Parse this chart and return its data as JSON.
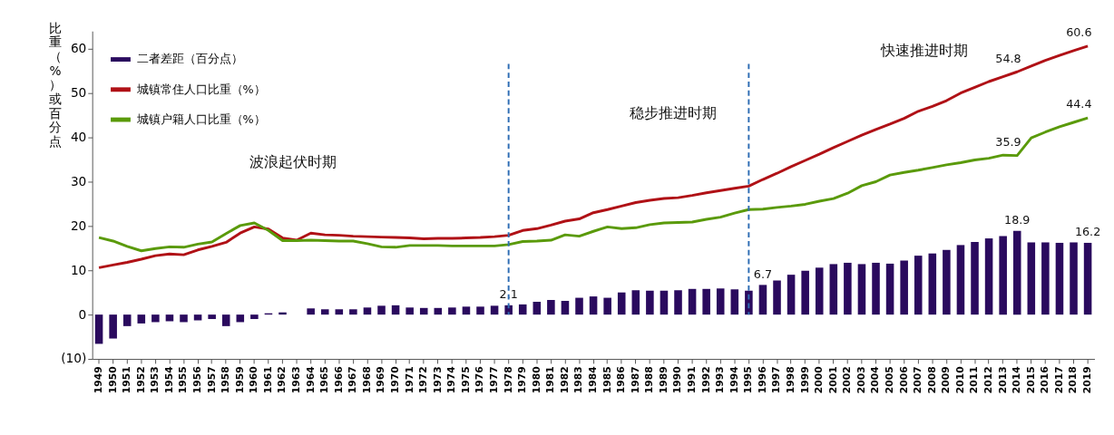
{
  "chart_data": {
    "type": "bar",
    "ylabel": "比重（%）或百分点",
    "categories": [
      "1949",
      "1950",
      "1951",
      "1952",
      "1953",
      "1954",
      "1955",
      "1956",
      "1957",
      "1958",
      "1959",
      "1960",
      "1961",
      "1962",
      "1963",
      "1964",
      "1965",
      "1966",
      "1967",
      "1968",
      "1969",
      "1970",
      "1971",
      "1972",
      "1973",
      "1974",
      "1975",
      "1976",
      "1977",
      "1978",
      "1979",
      "1980",
      "1981",
      "1982",
      "1983",
      "1984",
      "1985",
      "1986",
      "1987",
      "1988",
      "1989",
      "1990",
      "1991",
      "1992",
      "1993",
      "1994",
      "1995",
      "1996",
      "1997",
      "1998",
      "1999",
      "2000",
      "2001",
      "2002",
      "2003",
      "2004",
      "2005",
      "2006",
      "2007",
      "2008",
      "2009",
      "2010",
      "2011",
      "2012",
      "2013",
      "2014",
      "2015",
      "2016",
      "2017",
      "2018",
      "2019"
    ],
    "series": [
      {
        "name": "二者差距（百分点）",
        "color": "#2a0a5e",
        "values": [
          -6.6,
          -5.4,
          -2.6,
          -2.0,
          -1.7,
          -1.5,
          -1.7,
          -1.3,
          -1.0,
          -2.6,
          -1.7,
          -1.0,
          0.3,
          0.5,
          0,
          1.4,
          1.2,
          1.2,
          1.2,
          1.6,
          2.0,
          2.1,
          1.6,
          1.5,
          1.5,
          1.6,
          1.8,
          1.8,
          2.0,
          2.1,
          2.3,
          2.9,
          3.3,
          3.1,
          3.8,
          4.1,
          3.8,
          5.0,
          5.5,
          5.4,
          5.4,
          5.5,
          5.8,
          5.8,
          5.9,
          5.7,
          5.4,
          6.7,
          7.7,
          9.0,
          9.9,
          10.6,
          11.4,
          11.7,
          11.4,
          11.7,
          11.5,
          12.2,
          13.3,
          13.8,
          14.6,
          15.7,
          16.4,
          17.2,
          17.7,
          18.9,
          16.3,
          16.3,
          16.2,
          16.3,
          16.2
        ],
        "value_labels": [
          null,
          null,
          null,
          null,
          null,
          null,
          null,
          null,
          null,
          null,
          null,
          null,
          null,
          null,
          null,
          null,
          null,
          null,
          null,
          null,
          null,
          null,
          null,
          null,
          null,
          null,
          null,
          null,
          null,
          "2.1",
          null,
          null,
          null,
          null,
          null,
          null,
          null,
          null,
          null,
          null,
          null,
          null,
          null,
          null,
          null,
          null,
          null,
          "6.7",
          null,
          null,
          null,
          null,
          null,
          null,
          null,
          null,
          null,
          null,
          null,
          null,
          null,
          null,
          null,
          null,
          null,
          "18.9",
          null,
          null,
          null,
          null,
          "16.2"
        ]
      },
      {
        "name": "城镇常住人口比重（%）",
        "type": "line",
        "color": "#b01116",
        "values": [
          10.6,
          11.2,
          11.8,
          12.5,
          13.3,
          13.7,
          13.5,
          14.6,
          15.4,
          16.3,
          18.4,
          19.8,
          19.3,
          17.3,
          16.8,
          18.4,
          18.0,
          17.9,
          17.7,
          17.6,
          17.5,
          17.4,
          17.3,
          17.1,
          17.2,
          17.2,
          17.3,
          17.4,
          17.6,
          17.9,
          19.0,
          19.4,
          20.2,
          21.1,
          21.6,
          23.0,
          23.7,
          24.5,
          25.3,
          25.8,
          26.2,
          26.4,
          26.9,
          27.5,
          28.0,
          28.5,
          29.0,
          30.5,
          31.9,
          33.4,
          34.8,
          36.2,
          37.7,
          39.1,
          40.5,
          41.8,
          43.0,
          44.3,
          45.9,
          47.0,
          48.3,
          50.0,
          51.3,
          52.6,
          53.7,
          54.8,
          56.1,
          57.4,
          58.5,
          59.6,
          60.6
        ],
        "value_labels": [
          null,
          null,
          null,
          null,
          null,
          null,
          null,
          null,
          null,
          null,
          null,
          null,
          null,
          null,
          null,
          null,
          null,
          null,
          null,
          null,
          null,
          null,
          null,
          null,
          null,
          null,
          null,
          null,
          null,
          null,
          null,
          null,
          null,
          null,
          null,
          null,
          null,
          null,
          null,
          null,
          null,
          null,
          null,
          null,
          null,
          null,
          null,
          null,
          null,
          null,
          null,
          null,
          null,
          null,
          null,
          null,
          null,
          null,
          null,
          null,
          null,
          null,
          null,
          null,
          null,
          "54.8",
          null,
          null,
          null,
          null,
          "60.6"
        ]
      },
      {
        "name": "城镇户籍人口比重（%）",
        "type": "line",
        "color": "#5a9a0a",
        "values": [
          17.4,
          16.6,
          15.4,
          14.4,
          14.9,
          15.3,
          15.2,
          15.9,
          16.4,
          18.3,
          20.1,
          20.7,
          19.0,
          16.7,
          16.7,
          16.8,
          16.7,
          16.6,
          16.6,
          16.0,
          15.3,
          15.2,
          15.6,
          15.6,
          15.6,
          15.5,
          15.5,
          15.5,
          15.5,
          15.8,
          16.5,
          16.6,
          16.8,
          18.0,
          17.7,
          18.8,
          19.8,
          19.4,
          19.6,
          20.3,
          20.7,
          20.8,
          20.9,
          21.5,
          22.0,
          22.9,
          23.7,
          23.8,
          24.2,
          24.5,
          24.9,
          25.6,
          26.2,
          27.4,
          29.1,
          30.0,
          31.5,
          32.1,
          32.6,
          33.2,
          33.8,
          34.3,
          34.9,
          35.3,
          36.0,
          35.9,
          39.9,
          41.2,
          42.4,
          43.4,
          44.4
        ],
        "value_labels": [
          null,
          null,
          null,
          null,
          null,
          null,
          null,
          null,
          null,
          null,
          null,
          null,
          null,
          null,
          null,
          null,
          null,
          null,
          null,
          null,
          null,
          null,
          null,
          null,
          null,
          null,
          null,
          null,
          null,
          null,
          null,
          null,
          null,
          null,
          null,
          null,
          null,
          null,
          null,
          null,
          null,
          null,
          null,
          null,
          null,
          null,
          null,
          null,
          null,
          null,
          null,
          null,
          null,
          null,
          null,
          null,
          null,
          null,
          null,
          null,
          null,
          null,
          null,
          null,
          null,
          "35.9",
          null,
          null,
          null,
          null,
          "44.4"
        ]
      }
    ],
    "ylim": [
      -10,
      64
    ],
    "yticks": [
      {
        "value": -10,
        "label": "(10)"
      },
      0,
      10,
      20,
      30,
      40,
      50,
      60
    ],
    "ref_lines": [
      {
        "axis": "x",
        "value": "1978",
        "color": "#2e6db4",
        "line_style": "dashed"
      },
      {
        "axis": "x",
        "value": "1995",
        "color": "#2e6db4",
        "line_style": "dashed"
      }
    ],
    "annotations": [
      "波浪起伏时期",
      "稳步推进时期",
      "快速推进时期"
    ],
    "legend": "top left",
    "grid": false,
    "line_style": "solid",
    "marker": "none"
  }
}
